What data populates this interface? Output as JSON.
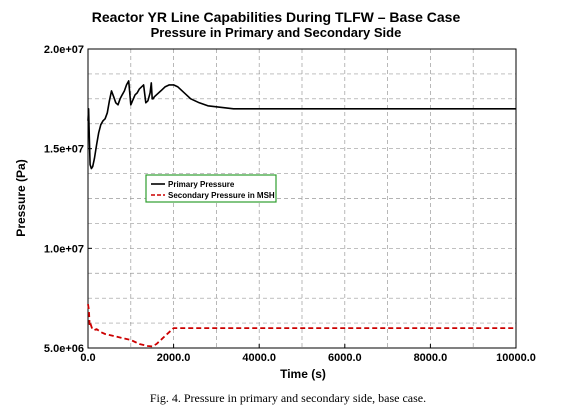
{
  "chart_data": {
    "type": "line",
    "title": "Reactor YR Line Capabilities During TLFW – Base Case",
    "subtitle": "Pressure in Primary and Secondary Side",
    "xlabel": "Time (s)",
    "ylabel": "Pressure (Pa)",
    "xlim": [
      0,
      10000
    ],
    "ylim": [
      5000000,
      20000000
    ],
    "x_ticks": [
      0,
      2000,
      4000,
      6000,
      8000,
      10000
    ],
    "x_tick_labels": [
      "0.0",
      "2000.0",
      "4000.0",
      "6000.0",
      "8000.0",
      "10000.0"
    ],
    "y_ticks": [
      5000000,
      10000000,
      15000000,
      20000000
    ],
    "y_tick_labels": [
      "5.0e+06",
      "1.0e+07",
      "1.5e+07",
      "2.0e+07"
    ],
    "grid": true,
    "legend_position": "center-left",
    "series": [
      {
        "name": "Primary Pressure",
        "color": "#000000",
        "style": "solid",
        "x": [
          0,
          15,
          30,
          50,
          80,
          110,
          150,
          200,
          250,
          300,
          350,
          400,
          450,
          500,
          550,
          600,
          650,
          700,
          750,
          800,
          850,
          900,
          950,
          1000,
          1020,
          1040,
          1060,
          1080,
          1100,
          1150,
          1200,
          1250,
          1300,
          1350,
          1400,
          1450,
          1480,
          1500,
          1520,
          1550,
          1600,
          1700,
          1800,
          1900,
          2000,
          2100,
          2200,
          2400,
          2600,
          2800,
          3000,
          3200,
          3400,
          3600,
          4000,
          6000,
          8000,
          10000
        ],
        "values": [
          16400000,
          17000000,
          15600000,
          14200000,
          14000000,
          14100000,
          14500000,
          15200000,
          15800000,
          16200000,
          16400000,
          16500000,
          16800000,
          17400000,
          17900000,
          17600000,
          17300000,
          17200000,
          17500000,
          17700000,
          17900000,
          18200000,
          18400000,
          17200000,
          17300000,
          17400000,
          17500000,
          17600000,
          17700000,
          17800000,
          18000000,
          18100000,
          18200000,
          17300000,
          17400000,
          17800000,
          18300000,
          17500000,
          17500000,
          17600000,
          17700000,
          17900000,
          18100000,
          18200000,
          18200000,
          18100000,
          17900000,
          17500000,
          17300000,
          17150000,
          17100000,
          17050000,
          17000000,
          17000000,
          17000000,
          17000000,
          17000000,
          17000000
        ]
      },
      {
        "name": "Secondary Pressure in MSH",
        "color": "#cc0000",
        "style": "dashed",
        "x": [
          0,
          20,
          40,
          60,
          100,
          150,
          200,
          300,
          400,
          500,
          600,
          700,
          800,
          900,
          1000,
          1100,
          1200,
          1300,
          1400,
          1500,
          1600,
          1700,
          1800,
          1900,
          2000,
          2200,
          2500,
          3000,
          4000,
          6000,
          8000,
          10000
        ],
        "values": [
          7200000,
          6900000,
          6100000,
          6200000,
          5950000,
          5900000,
          5950000,
          5800000,
          5700000,
          5650000,
          5600000,
          5550000,
          5500000,
          5450000,
          5400000,
          5300000,
          5200000,
          5150000,
          5100000,
          5080000,
          5200000,
          5400000,
          5600000,
          5800000,
          6000000,
          6000000,
          6000000,
          6000000,
          6000000,
          6000000,
          6000000,
          6000000
        ]
      }
    ]
  },
  "caption": "Fig. 4.  Pressure in primary and secondary side, base case."
}
